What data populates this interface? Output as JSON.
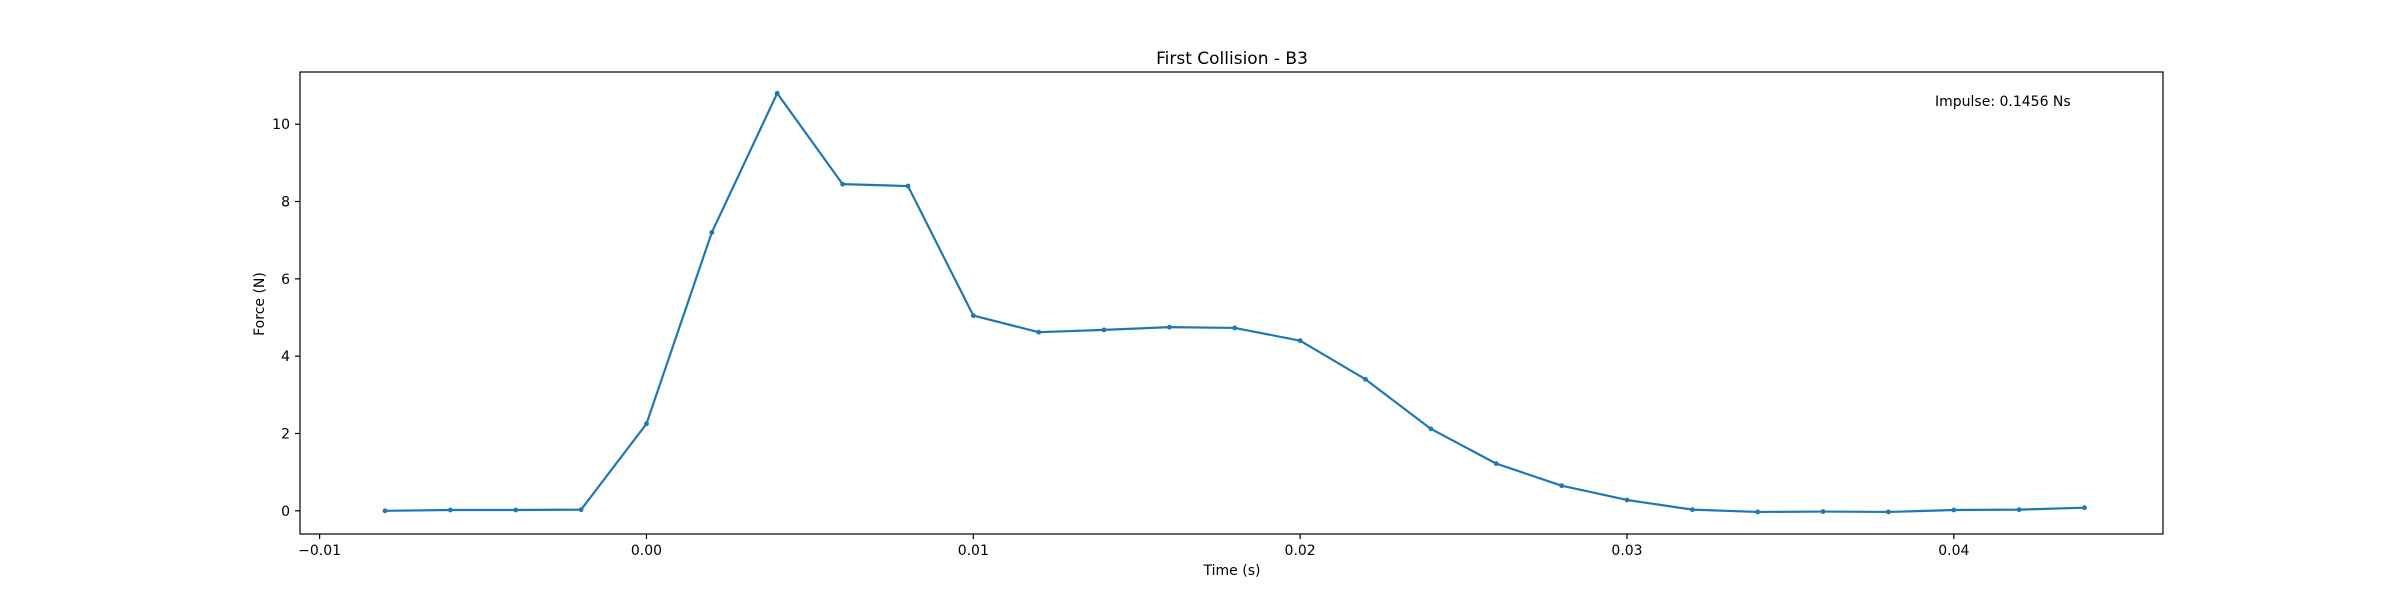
{
  "chart_data": {
    "type": "line",
    "title": "First Collision - B3",
    "xlabel": "Time (s)",
    "ylabel": "Force (N)",
    "xlim": [
      -0.0106,
      0.0464
    ],
    "ylim": [
      -0.6,
      11.35
    ],
    "grid": false,
    "xticks": [
      -0.01,
      0.0,
      0.01,
      0.02,
      0.03,
      0.04
    ],
    "xtick_labels": [
      "−0.01",
      "0.00",
      "0.01",
      "0.02",
      "0.03",
      "0.04"
    ],
    "yticks": [
      0,
      2,
      4,
      6,
      8,
      10
    ],
    "ytick_labels": [
      "0",
      "2",
      "4",
      "6",
      "8",
      "10"
    ],
    "annotation": "Impulse: 0.1456 Ns",
    "annotation_position": "top-right",
    "series": [
      {
        "color": "#1f77b4",
        "marker": "point",
        "x": [
          -0.008,
          -0.006,
          -0.004,
          -0.002,
          0.0,
          0.002,
          0.004,
          0.006,
          0.008,
          0.01,
          0.012,
          0.014,
          0.016,
          0.018,
          0.02,
          0.022,
          0.024,
          0.026,
          0.028,
          0.03,
          0.032,
          0.034,
          0.036,
          0.038,
          0.04,
          0.042,
          0.044
        ],
        "y": [
          0.0,
          0.02,
          0.02,
          0.03,
          2.25,
          7.2,
          10.8,
          8.45,
          8.4,
          5.05,
          4.62,
          4.68,
          4.75,
          4.73,
          4.4,
          3.4,
          2.12,
          1.22,
          0.65,
          0.28,
          0.03,
          -0.03,
          -0.02,
          -0.03,
          0.02,
          0.03,
          0.08
        ]
      }
    ]
  }
}
